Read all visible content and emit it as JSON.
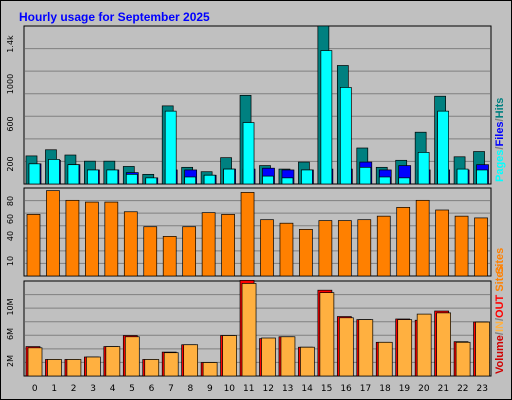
{
  "colors": {
    "background": "#c0c0c0",
    "title": "#0000ff",
    "grid": "#808080",
    "pages": "#00ffff",
    "files": "#0000ff",
    "hits": "#008080",
    "sites": "#ff8000",
    "in": "#ffb040",
    "out": "#ff0000",
    "volume": "#d00000"
  },
  "chart_data": [
    {
      "type": "bar",
      "title": "Hourly usage for September 2025",
      "categories": [
        "0",
        "1",
        "2",
        "3",
        "4",
        "5",
        "6",
        "7",
        "8",
        "9",
        "10",
        "11",
        "12",
        "13",
        "14",
        "15",
        "16",
        "17",
        "18",
        "19",
        "20",
        "21",
        "22",
        "23"
      ],
      "ylim": [
        0,
        1800
      ],
      "yticks": [
        "200",
        "600",
        "1000",
        "1.4k"
      ],
      "legend": [
        {
          "text": "Pages",
          "color": "#00ffff"
        },
        {
          "text": "/",
          "color": "#808080"
        },
        {
          "text": "Files",
          "color": "#0000ff"
        },
        {
          "text": "/",
          "color": "#808080"
        },
        {
          "text": "Hits",
          "color": "#008080"
        }
      ],
      "series": [
        {
          "name": "Hits",
          "values": [
            320,
            390,
            330,
            260,
            260,
            200,
            110,
            890,
            190,
            140,
            300,
            1010,
            210,
            170,
            250,
            1800,
            1350,
            410,
            190,
            270,
            590,
            1000,
            310,
            370
          ]
        },
        {
          "name": "Files",
          "values": [
            230,
            270,
            220,
            160,
            160,
            130,
            70,
            160,
            160,
            100,
            170,
            170,
            180,
            160,
            160,
            170,
            170,
            250,
            160,
            210,
            160,
            160,
            160,
            220
          ]
        },
        {
          "name": "Pages",
          "values": [
            230,
            280,
            220,
            160,
            160,
            110,
            70,
            830,
            80,
            100,
            170,
            700,
            90,
            70,
            160,
            1520,
            1100,
            190,
            80,
            70,
            360,
            830,
            170,
            160
          ]
        }
      ]
    },
    {
      "type": "bar",
      "categories": [
        "0",
        "1",
        "2",
        "3",
        "4",
        "5",
        "6",
        "7",
        "8",
        "9",
        "10",
        "11",
        "12",
        "13",
        "14",
        "15",
        "16",
        "17",
        "18",
        "19",
        "20",
        "21",
        "22",
        "23"
      ],
      "ylim": [
        0,
        100
      ],
      "yticks": [
        "10",
        "40",
        "60",
        "80"
      ],
      "legend": [
        {
          "text": "Sites",
          "color": "#ff8000"
        }
      ],
      "series": [
        {
          "name": "Sites",
          "values": [
            70,
            97,
            86,
            84,
            84,
            73,
            56,
            45,
            56,
            72,
            70,
            95,
            64,
            60,
            53,
            63,
            63,
            64,
            68,
            78,
            86,
            75,
            68,
            66
          ]
        }
      ]
    },
    {
      "type": "bar",
      "categories": [
        "0",
        "1",
        "2",
        "3",
        "4",
        "5",
        "6",
        "7",
        "8",
        "9",
        "10",
        "11",
        "12",
        "13",
        "14",
        "15",
        "16",
        "17",
        "18",
        "19",
        "20",
        "21",
        "22",
        "23"
      ],
      "ylim": [
        0,
        15.5
      ],
      "yticks": [
        "2M",
        "6M",
        "10M"
      ],
      "legend": [
        {
          "text": "Volume",
          "color": "#d00000"
        },
        {
          "text": "/",
          "color": "#808080"
        },
        {
          "text": "IN",
          "color": "#ffb040"
        },
        {
          "text": "/",
          "color": "#808080"
        },
        {
          "text": "OUT",
          "color": "#ff0000"
        },
        {
          "text": "Sites",
          "color": "#ff8000"
        }
      ],
      "series": [
        {
          "name": "IN",
          "values": [
            4.6,
            2.7,
            2.7,
            3.1,
            4.8,
            6.4,
            2.7,
            3.8,
            5.1,
            2.2,
            6.6,
            15.1,
            6.2,
            6.4,
            4.7,
            13.6,
            9.5,
            9.2,
            5.5,
            9.2,
            10.1,
            10.3,
            5.5,
            8.8
          ]
        },
        {
          "name": "OUT",
          "values": [
            4.8,
            2.7,
            2.7,
            3.1,
            4.8,
            6.6,
            2.7,
            3.9,
            5.1,
            2.2,
            6.6,
            15.6,
            6.1,
            6.4,
            4.7,
            14.0,
            9.7,
            9.2,
            5.5,
            9.3,
            9.1,
            10.6,
            5.6,
            8.8
          ]
        }
      ]
    }
  ]
}
